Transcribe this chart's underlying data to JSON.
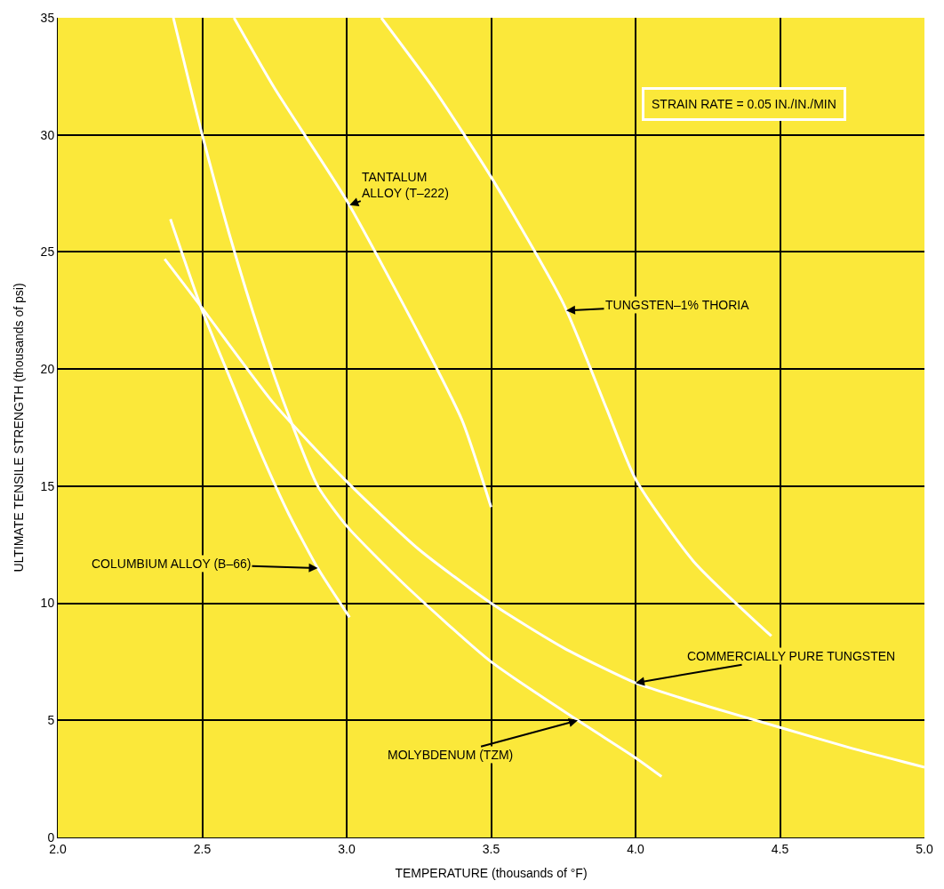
{
  "chart_data": {
    "type": "line",
    "xlabel": "TEMPERATURE (thousands of °F)",
    "ylabel": "ULTIMATE TENSILE STRENGTH (thousands of psi)",
    "xlim": [
      2.0,
      5.0
    ],
    "ylim": [
      0,
      35
    ],
    "xticks": [
      {
        "value": 2.0,
        "label": "2.0"
      },
      {
        "value": 2.5,
        "label": "2.5"
      },
      {
        "value": 3.0,
        "label": "3.0"
      },
      {
        "value": 3.5,
        "label": "3.5"
      },
      {
        "value": 4.0,
        "label": "4.0"
      },
      {
        "value": 4.5,
        "label": "4.5"
      },
      {
        "value": 5.0,
        "label": "5.0"
      }
    ],
    "yticks": [
      0,
      5,
      10,
      15,
      20,
      25,
      30,
      35
    ],
    "grid": true,
    "marker": "none",
    "line_style": "solid",
    "series": [
      {
        "color": "#ffffff",
        "x": [
          2.39,
          2.5,
          2.6,
          2.7,
          2.8,
          2.9,
          3.01
        ],
        "values": [
          26.4,
          22.5,
          19.5,
          16.5,
          13.8,
          11.5,
          9.4
        ]
      },
      {
        "color": "#ffffff",
        "x": [
          2.4,
          2.5,
          2.6,
          2.7,
          2.8,
          2.9,
          3.0,
          3.2,
          3.5,
          3.8,
          4.0,
          4.09
        ],
        "values": [
          35,
          30,
          25.5,
          21.5,
          18,
          15,
          13.3,
          10.8,
          7.5,
          5.0,
          3.4,
          2.6
        ]
      },
      {
        "color": "#ffffff",
        "x": [
          2.37,
          2.5,
          2.75,
          3.0,
          3.25,
          3.5,
          3.75,
          4.0,
          4.25,
          4.5,
          4.75,
          5.0
        ],
        "values": [
          24.7,
          22.6,
          18.5,
          15.2,
          12.3,
          10.0,
          8.1,
          6.6,
          5.6,
          4.7,
          3.8,
          3.0
        ]
      },
      {
        "color": "#ffffff",
        "x": [
          2.61,
          2.75,
          3.0,
          3.25,
          3.4,
          3.5
        ],
        "values": [
          35,
          32,
          27.2,
          21.5,
          17.8,
          14.1
        ]
      },
      {
        "color": "#ffffff",
        "x": [
          3.12,
          3.3,
          3.5,
          3.75,
          3.9,
          4.0,
          4.2,
          4.47
        ],
        "values": [
          35,
          32,
          28.2,
          22.8,
          18.3,
          15.3,
          11.8,
          8.6
        ]
      }
    ],
    "annotations": [
      {
        "text": "COLUMBIUM ALLOY (B–66)",
        "x": 2.9,
        "y": 11.5
      },
      {
        "text": "MOLYBDENUM (TZM)",
        "x": 3.8,
        "y": 5.0
      },
      {
        "text": "COMMERCIALLY PURE TUNGSTEN",
        "x": 4.0,
        "y": 6.6
      },
      {
        "text": "TANTALUM\nALLOY (T–222)",
        "x": 3.01,
        "y": 27.0
      },
      {
        "text": "TUNGSTEN–1% THORIA",
        "x": 3.76,
        "y": 22.5
      },
      "STRAIN RATE = 0.05 IN./IN./MIN"
    ]
  }
}
